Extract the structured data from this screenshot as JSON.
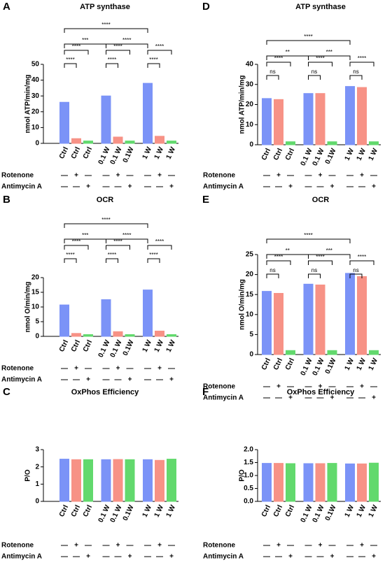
{
  "chart_data": [
    {
      "type": "bar",
      "panel": "A",
      "title": "ATP synthase",
      "ylabel": "nmol ATP/min/mg",
      "categories": [
        "Ctrl",
        "Ctrl",
        "Ctrl",
        "0.1 W",
        "0.1 W",
        "0.1W",
        "1 W",
        "1 W",
        "1 W"
      ],
      "values": [
        26,
        3,
        1.5,
        30,
        4,
        1.5,
        38,
        4.5,
        1.5
      ],
      "colors": [
        "#7b93f7",
        "#f79286",
        "#62d96d"
      ],
      "ylim": [
        0,
        50
      ],
      "yticks": [
        0,
        10,
        20,
        30,
        40,
        50
      ],
      "brackets": [
        {
          "from": 0,
          "to": 1,
          "label": "****"
        },
        {
          "from": 0,
          "to": 2,
          "label": "****"
        },
        {
          "from": 0,
          "to": 3,
          "label": "***"
        },
        {
          "from": 0,
          "to": 6,
          "label": "****"
        },
        {
          "from": 3,
          "to": 6,
          "label": "****"
        },
        {
          "from": 3,
          "to": 4,
          "label": "****"
        },
        {
          "from": 3,
          "to": 5,
          "label": "****"
        },
        {
          "from": 6,
          "to": 7,
          "label": "****"
        },
        {
          "from": 6,
          "to": 8,
          "label": "****"
        }
      ],
      "treatments": [
        {
          "name": "Rotenone",
          "marks": [
            "—",
            "+",
            "—",
            "—",
            "+",
            "—",
            "—",
            "+",
            "—"
          ]
        },
        {
          "name": "Antimycin A",
          "marks": [
            "—",
            "—",
            "+",
            "—",
            "—",
            "+",
            "—",
            "—",
            "+"
          ]
        }
      ]
    },
    {
      "type": "bar",
      "panel": "B",
      "title": "OCR",
      "ylabel": "nmol O/min/mg",
      "categories": [
        "Ctrl",
        "Ctrl",
        "Ctrl",
        "0.1 W",
        "0.1 W",
        "0.1W",
        "1 W",
        "1 W",
        "1 W"
      ],
      "values": [
        10.7,
        1,
        0.6,
        12.5,
        1.6,
        0.6,
        15.8,
        1.8,
        0.6
      ],
      "colors": [
        "#7b93f7",
        "#f79286",
        "#62d96d"
      ],
      "ylim": [
        0,
        20
      ],
      "yticks": [
        0,
        5,
        10,
        15,
        20
      ],
      "brackets": [
        {
          "from": 0,
          "to": 1,
          "label": "****"
        },
        {
          "from": 0,
          "to": 2,
          "label": "****"
        },
        {
          "from": 0,
          "to": 3,
          "label": "***"
        },
        {
          "from": 0,
          "to": 6,
          "label": "****"
        },
        {
          "from": 3,
          "to": 6,
          "label": "****"
        },
        {
          "from": 3,
          "to": 4,
          "label": "****"
        },
        {
          "from": 3,
          "to": 5,
          "label": "****"
        },
        {
          "from": 6,
          "to": 7,
          "label": "****"
        },
        {
          "from": 6,
          "to": 8,
          "label": "****"
        }
      ],
      "treatments": [
        {
          "name": "Rotenone",
          "marks": [
            "—",
            "+",
            "—",
            "—",
            "+",
            "—",
            "—",
            "+",
            "—"
          ]
        },
        {
          "name": "Antimycin A",
          "marks": [
            "—",
            "—",
            "+",
            "—",
            "—",
            "+",
            "—",
            "—",
            "+"
          ]
        }
      ]
    },
    {
      "type": "bar",
      "panel": "C",
      "title": "OxPhos Efficiency",
      "ylabel": "P/O",
      "categories": [
        "Ctrl",
        "Ctrl",
        "Ctrl",
        "0.1 W",
        "0.1 W",
        "0.1W",
        "1 W",
        "1 W",
        "1 W"
      ],
      "values": [
        2.45,
        2.42,
        2.42,
        2.42,
        2.43,
        2.42,
        2.42,
        2.38,
        2.45
      ],
      "colors": [
        "#7b93f7",
        "#f79286",
        "#62d96d"
      ],
      "ylim": [
        0,
        3
      ],
      "yticks": [
        0,
        1,
        2,
        3
      ],
      "brackets": [],
      "treatments": [
        {
          "name": "Rotenone",
          "marks": [
            "—",
            "+",
            "—",
            "—",
            "+",
            "—",
            "—",
            "+",
            "—"
          ]
        },
        {
          "name": "Antimycin A",
          "marks": [
            "—",
            "—",
            "+",
            "—",
            "—",
            "+",
            "—",
            "—",
            "+"
          ]
        }
      ]
    },
    {
      "type": "bar",
      "panel": "D",
      "title": "ATP synthase",
      "ylabel": "nmol ATP/min/mg",
      "categories": [
        "Ctrl",
        "Ctrl",
        "Ctrl",
        "0.1 W",
        "0.1 W",
        "0.1W",
        "1 W",
        "1 W",
        "1 W"
      ],
      "values": [
        23,
        22.5,
        1.5,
        25.5,
        25.5,
        1.5,
        29,
        28.5,
        1.5
      ],
      "colors": [
        "#7b93f7",
        "#f79286",
        "#62d96d"
      ],
      "ylim": [
        0,
        40
      ],
      "yticks": [
        0,
        10,
        20,
        30,
        40
      ],
      "brackets": [
        {
          "from": 0,
          "to": 1,
          "label": "ns"
        },
        {
          "from": 0,
          "to": 2,
          "label": "****"
        },
        {
          "from": 0,
          "to": 3,
          "label": "**"
        },
        {
          "from": 0,
          "to": 6,
          "label": "****"
        },
        {
          "from": 3,
          "to": 6,
          "label": "***"
        },
        {
          "from": 3,
          "to": 4,
          "label": "ns"
        },
        {
          "from": 3,
          "to": 5,
          "label": "****"
        },
        {
          "from": 6,
          "to": 7,
          "label": "ns"
        },
        {
          "from": 6,
          "to": 8,
          "label": "****"
        }
      ],
      "treatments": [
        {
          "name": "Rotenone",
          "marks": [
            "—",
            "+",
            "—",
            "—",
            "+",
            "—",
            "—",
            "+",
            "—"
          ]
        },
        {
          "name": "Antimycin A",
          "marks": [
            "—",
            "—",
            "+",
            "—",
            "—",
            "+",
            "—",
            "—",
            "+"
          ]
        }
      ]
    },
    {
      "type": "bar",
      "panel": "E",
      "title": "OCR",
      "ylabel": "nmol O/min/mg",
      "categories": [
        "Ctrl",
        "Ctrl",
        "Ctrl",
        "0.1 W",
        "0.1 W",
        "0.1W",
        "1 W",
        "1 W",
        "1 W"
      ],
      "values": [
        15.8,
        15.3,
        1,
        17.6,
        17.4,
        1,
        20.3,
        19.5,
        1
      ],
      "colors": [
        "#7b93f7",
        "#f79286",
        "#62d96d"
      ],
      "ylim": [
        0,
        25
      ],
      "yticks": [
        0,
        5,
        10,
        15,
        20,
        25
      ],
      "brackets": [
        {
          "from": 0,
          "to": 1,
          "label": "ns"
        },
        {
          "from": 0,
          "to": 2,
          "label": "****"
        },
        {
          "from": 0,
          "to": 3,
          "label": "**"
        },
        {
          "from": 0,
          "to": 6,
          "label": "****"
        },
        {
          "from": 3,
          "to": 6,
          "label": "***"
        },
        {
          "from": 3,
          "to": 4,
          "label": "ns"
        },
        {
          "from": 3,
          "to": 5,
          "label": "****"
        },
        {
          "from": 6,
          "to": 7,
          "label": "ns"
        },
        {
          "from": 6,
          "to": 8,
          "label": "****"
        }
      ],
      "treatments": [
        {
          "name": "Rotenone",
          "marks": [
            "—",
            "+",
            "—",
            "—",
            "+",
            "—",
            "—",
            "+",
            "—"
          ]
        },
        {
          "name": "Antimycin A",
          "marks": [
            "—",
            "—",
            "+",
            "—",
            "—",
            "+",
            "—",
            "—",
            "+"
          ]
        }
      ]
    },
    {
      "type": "bar",
      "panel": "F",
      "title": "OxPhos Efficiency",
      "ylabel": "P/O",
      "categories": [
        "Ctrl",
        "Ctrl",
        "Ctrl",
        "0.1 W",
        "0.1 W",
        "0.1W",
        "1 W",
        "1 W",
        "1 W"
      ],
      "values": [
        1.47,
        1.47,
        1.46,
        1.46,
        1.46,
        1.47,
        1.45,
        1.45,
        1.48
      ],
      "colors": [
        "#7b93f7",
        "#f79286",
        "#62d96d"
      ],
      "ylim": [
        0,
        2
      ],
      "yticks": [
        {
          "value": 0,
          "label": "0.0"
        },
        {
          "value": 0.5,
          "label": "0.5"
        },
        {
          "value": 1,
          "label": "1.0"
        },
        {
          "value": 1.5,
          "label": "1.5"
        },
        {
          "value": 2,
          "label": "2.0"
        }
      ],
      "brackets": [],
      "treatments": [
        {
          "name": "Rotenone",
          "marks": [
            "—",
            "+",
            "—",
            "—",
            "+",
            "—",
            "—",
            "+",
            "—"
          ]
        },
        {
          "name": "Antimycin A",
          "marks": [
            "—",
            "—",
            "+",
            "—",
            "—",
            "+",
            "—",
            "—",
            "+"
          ]
        }
      ]
    }
  ]
}
